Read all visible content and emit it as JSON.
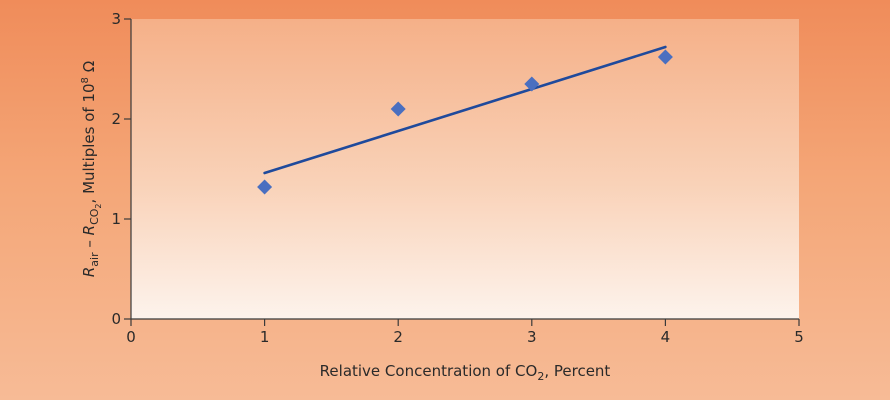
{
  "chart_data": {
    "type": "scatter",
    "title": "",
    "xlabel": {
      "main": "Relative Concentration of CO",
      "sub": "2",
      "tail": ", Percent"
    },
    "ylabel": {
      "r1": "R",
      "r1_sub": "air",
      "dash": " – ",
      "r2": "R",
      "r2_sub": "CO",
      "r2_subsub": "2",
      "tail": ", Multiples of 10",
      "exp": "8",
      "unit": " Ω"
    },
    "xlim": [
      0,
      5
    ],
    "ylim": [
      0,
      3
    ],
    "x_ticks": [
      0,
      1,
      2,
      3,
      4,
      5
    ],
    "y_ticks": [
      0,
      1,
      2,
      3
    ],
    "grid": false,
    "series": [
      {
        "type": "scatter",
        "marker": "diamond",
        "color": "#4a6fc0",
        "points": [
          {
            "x": 1,
            "y": 1.32
          },
          {
            "x": 2,
            "y": 2.1
          },
          {
            "x": 3,
            "y": 2.35
          },
          {
            "x": 4,
            "y": 2.62
          }
        ]
      },
      {
        "type": "line",
        "color": "#1f4a9c",
        "points": [
          {
            "x": 1,
            "y": 1.46
          },
          {
            "x": 4,
            "y": 2.72
          }
        ]
      }
    ]
  }
}
